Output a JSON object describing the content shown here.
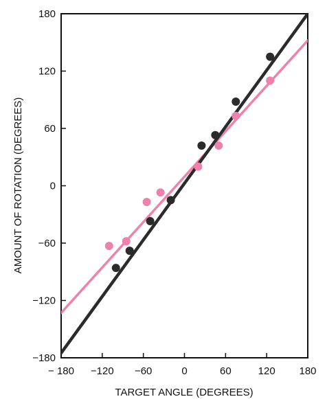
{
  "chart_data": {
    "type": "scatter",
    "xlabel": "TARGET ANGLE  (DEGREES)",
    "ylabel": "AMOUNT OF ROTATION  (DEGREES)",
    "xlim": [
      -180,
      180
    ],
    "ylim": [
      -180,
      180
    ],
    "xticks": [
      -180,
      -120,
      -60,
      0,
      60,
      120,
      180
    ],
    "yticks": [
      -180,
      -120,
      -60,
      0,
      60,
      120,
      180
    ],
    "xtick_labels": [
      "− 180",
      "−120",
      "−60",
      "0",
      "60",
      "120",
      "180"
    ],
    "ytick_labels": [
      "−180",
      "−120",
      "−60",
      "0",
      "60",
      "120",
      "180"
    ],
    "grid": false,
    "series": [
      {
        "color": "#2b2b2b",
        "points": [
          {
            "x": -100,
            "y": -86
          },
          {
            "x": -80,
            "y": -68
          },
          {
            "x": -50,
            "y": -37
          },
          {
            "x": -20,
            "y": -15
          },
          {
            "x": 25,
            "y": 42
          },
          {
            "x": 45,
            "y": 53
          },
          {
            "x": 75,
            "y": 88
          },
          {
            "x": 125,
            "y": 135
          }
        ],
        "fit_line": {
          "x": [
            -180,
            180
          ],
          "y": [
            -175,
            180
          ]
        }
      },
      {
        "color": "#ee82ad",
        "points": [
          {
            "x": -110,
            "y": -63
          },
          {
            "x": -85,
            "y": -58
          },
          {
            "x": -55,
            "y": -17
          },
          {
            "x": -35,
            "y": -7
          },
          {
            "x": 20,
            "y": 20
          },
          {
            "x": 50,
            "y": 42
          },
          {
            "x": 75,
            "y": 73
          },
          {
            "x": 125,
            "y": 110
          }
        ],
        "fit_line": {
          "x": [
            -180,
            180
          ],
          "y": [
            -133,
            152
          ]
        }
      }
    ]
  }
}
